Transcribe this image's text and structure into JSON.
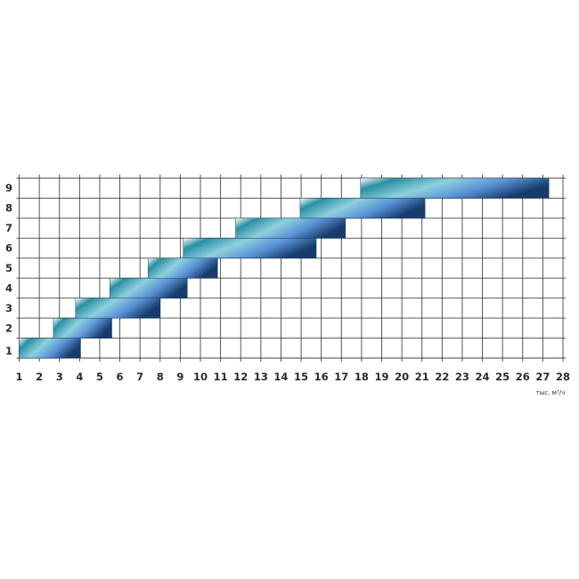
{
  "chart_data": {
    "type": "range-bar",
    "title": "",
    "xlabel": "тыс. м³/ч",
    "ylabel": "",
    "xlim": [
      1,
      28
    ],
    "x_ticks": [
      "1",
      "2",
      "3",
      "4",
      "5",
      "6",
      "7",
      "8",
      "9",
      "10",
      "11",
      "12",
      "13",
      "14",
      "15",
      "16",
      "17",
      "18",
      "19",
      "20",
      "21",
      "22",
      "23",
      "24",
      "25",
      "26",
      "27",
      "28"
    ],
    "categories": [
      "1",
      "2",
      "3",
      "4",
      "5",
      "6",
      "7",
      "8",
      "9"
    ],
    "ranges": [
      [
        1.0,
        4.05
      ],
      [
        2.7,
        5.6
      ],
      [
        3.8,
        8.0
      ],
      [
        5.5,
        9.35
      ],
      [
        7.4,
        10.85
      ],
      [
        9.15,
        15.75
      ],
      [
        11.75,
        17.2
      ],
      [
        14.95,
        21.15
      ],
      [
        17.95,
        27.3
      ]
    ],
    "grid": true,
    "colors": [
      "#ffffff",
      "#2a8fa3",
      "#8fd0de",
      "#5a92d6",
      "#163c6b"
    ]
  }
}
